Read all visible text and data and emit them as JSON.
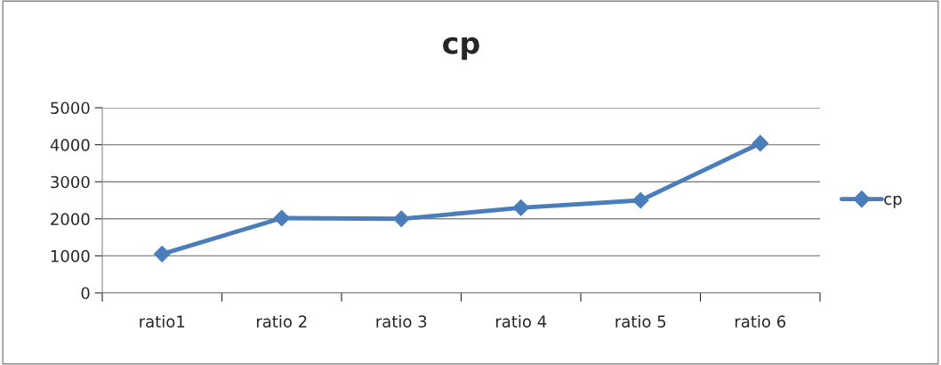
{
  "chart_data": {
    "type": "line",
    "title": "cp",
    "categories": [
      "ratio1",
      "ratio 2",
      "ratio 3",
      "ratio 4",
      "ratio 5",
      "ratio 6"
    ],
    "series": [
      {
        "name": "cp",
        "color": "#4a7ebb",
        "values": [
          1050,
          2020,
          2000,
          2300,
          2500,
          4040
        ]
      }
    ],
    "ylim": [
      0,
      5000
    ],
    "yticks": [
      0,
      1000,
      2000,
      3000,
      4000,
      5000
    ],
    "grid": "y",
    "legend": "right",
    "marker": "diamond",
    "line_style": "solid"
  }
}
